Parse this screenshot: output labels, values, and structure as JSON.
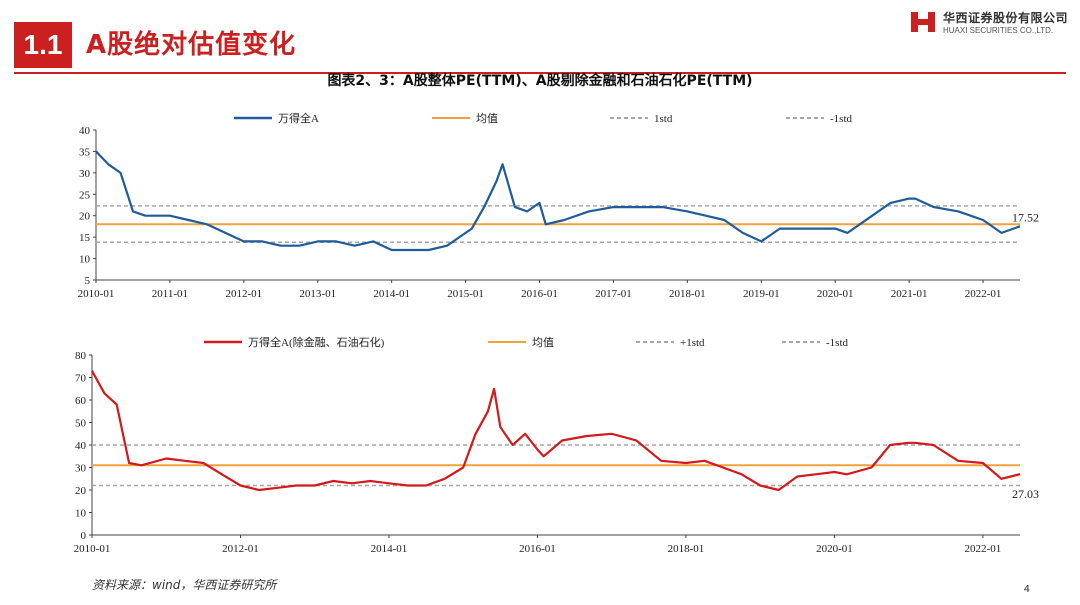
{
  "header": {
    "badge": "1.1",
    "title": "A股绝对估值变化"
  },
  "logo": {
    "cn": "华西证券股份有限公司",
    "en": "HUAXI SECURITIES CO.,LTD.",
    "accent": "#cc1f1f"
  },
  "figure_title": "图表2、3：A股整体PE(TTM)、A股剔除金融和石油石化PE(TTM)",
  "source": "资料来源：wind，华西证券研究所",
  "page_number": "4",
  "colors": {
    "series1": "#1f5c99",
    "series2": "#d21a1a",
    "mean": "#f0a33c",
    "std": "#a6a6a6",
    "brand": "#cc1f1f"
  },
  "chart_data": [
    {
      "type": "line",
      "legend": {
        "series": "万得全A",
        "mean": "均值",
        "plus_std": "1std",
        "minus_std": "-1std"
      },
      "x_tick_labels": [
        "2010-01",
        "2011-01",
        "2012-01",
        "2013-01",
        "2014-01",
        "2015-01",
        "2016-01",
        "2017-01",
        "2018-01",
        "2019-01",
        "2020-01",
        "2021-01",
        "2022-01"
      ],
      "xlim": [
        "2010-01",
        "2022-07"
      ],
      "ylim": [
        5,
        40
      ],
      "y_ticks": [
        5,
        10,
        15,
        20,
        25,
        30,
        35,
        40
      ],
      "mean": 18.0,
      "plus_std": 22.3,
      "minus_std": 13.8,
      "last_value_label": "17.52",
      "series": {
        "x": [
          "2010-01",
          "2010-03",
          "2010-05",
          "2010-07",
          "2010-09",
          "2010-11",
          "2011-01",
          "2011-04",
          "2011-07",
          "2011-10",
          "2012-01",
          "2012-04",
          "2012-07",
          "2012-10",
          "2013-01",
          "2013-04",
          "2013-07",
          "2013-10",
          "2014-01",
          "2014-04",
          "2014-07",
          "2014-10",
          "2014-12",
          "2015-02",
          "2015-04",
          "2015-06",
          "2015-07",
          "2015-09",
          "2015-11",
          "2016-01",
          "2016-02",
          "2016-05",
          "2016-09",
          "2017-01",
          "2017-05",
          "2017-09",
          "2018-01",
          "2018-04",
          "2018-07",
          "2018-10",
          "2019-01",
          "2019-04",
          "2019-07",
          "2019-10",
          "2020-01",
          "2020-03",
          "2020-07",
          "2020-10",
          "2021-01",
          "2021-02",
          "2021-05",
          "2021-09",
          "2022-01",
          "2022-04",
          "2022-07"
        ],
        "y": [
          35,
          32,
          30,
          21,
          20,
          20,
          20,
          19,
          18,
          16,
          14,
          14,
          13,
          13,
          14,
          14,
          13,
          14,
          12,
          12,
          12,
          13,
          15,
          17,
          22,
          28,
          32,
          22,
          21,
          23,
          18,
          19,
          21,
          22,
          22,
          22,
          21,
          20,
          19,
          16,
          14,
          17,
          17,
          17,
          17,
          16,
          20,
          23,
          24,
          24,
          22,
          21,
          19,
          16,
          17.52
        ]
      }
    },
    {
      "type": "line",
      "legend": {
        "series": "万得全A(除金融、石油石化)",
        "mean": "均值",
        "plus_std": "+1std",
        "minus_std": "-1std"
      },
      "x_tick_labels": [
        "2010-01",
        "2012-01",
        "2014-01",
        "2016-01",
        "2018-01",
        "2020-01",
        "2022-01"
      ],
      "xlim": [
        "2010-01",
        "2022-07"
      ],
      "ylim": [
        0,
        80
      ],
      "y_ticks": [
        0,
        10,
        20,
        30,
        40,
        50,
        60,
        70,
        80
      ],
      "mean": 31.0,
      "plus_std": 40.0,
      "minus_std": 22.0,
      "last_value_label": "27.03",
      "series": {
        "x": [
          "2010-01",
          "2010-03",
          "2010-05",
          "2010-07",
          "2010-09",
          "2011-01",
          "2011-04",
          "2011-07",
          "2011-10",
          "2012-01",
          "2012-04",
          "2012-07",
          "2012-10",
          "2013-01",
          "2013-04",
          "2013-07",
          "2013-10",
          "2014-01",
          "2014-04",
          "2014-07",
          "2014-10",
          "2015-01",
          "2015-03",
          "2015-05",
          "2015-06",
          "2015-07",
          "2015-09",
          "2015-11",
          "2016-01",
          "2016-02",
          "2016-05",
          "2016-09",
          "2017-01",
          "2017-05",
          "2017-09",
          "2018-01",
          "2018-04",
          "2018-07",
          "2018-10",
          "2019-01",
          "2019-04",
          "2019-07",
          "2019-10",
          "2020-01",
          "2020-03",
          "2020-07",
          "2020-10",
          "2021-01",
          "2021-02",
          "2021-05",
          "2021-09",
          "2022-01",
          "2022-04",
          "2022-07"
        ],
        "y": [
          73,
          63,
          58,
          32,
          31,
          34,
          33,
          32,
          27,
          22,
          20,
          21,
          22,
          22,
          24,
          23,
          24,
          23,
          22,
          22,
          25,
          30,
          45,
          55,
          65,
          48,
          40,
          45,
          38,
          35,
          42,
          44,
          45,
          42,
          33,
          32,
          33,
          30,
          27,
          22,
          20,
          26,
          27,
          28,
          27,
          30,
          40,
          41,
          41,
          40,
          33,
          32,
          25,
          27.03
        ]
      }
    }
  ]
}
